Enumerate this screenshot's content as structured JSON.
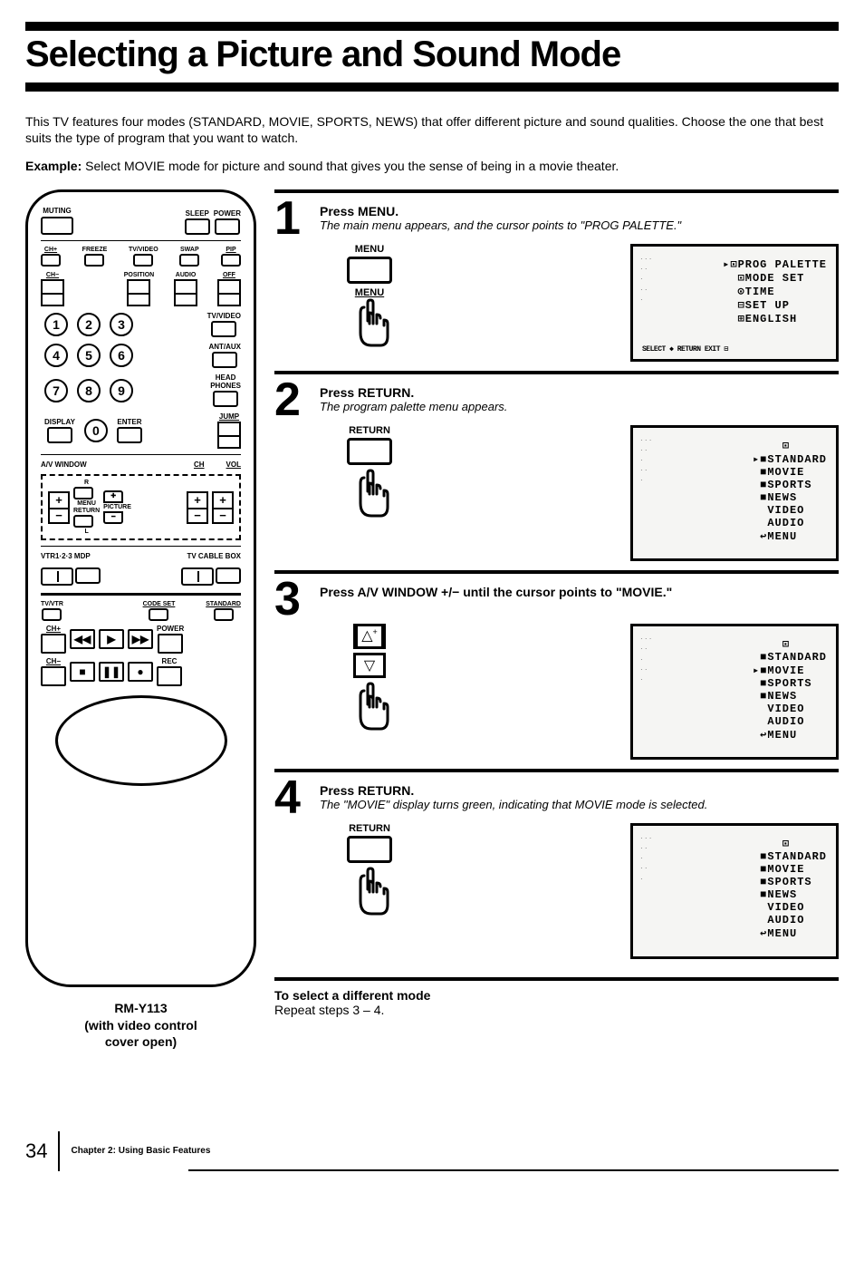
{
  "title": "Selecting a Picture and Sound Mode",
  "intro": "This TV features four modes (STANDARD, MOVIE, SPORTS, NEWS) that offer different picture and sound qualities.  Choose the one that best suits the type of program that you want to watch.",
  "example_label": "Example:",
  "example_text": " Select MOVIE mode for picture and sound that gives you the sense of being in a movie theater.",
  "remote": {
    "row1": {
      "muting": "MUTING",
      "sleep": "SLEEP",
      "power": "POWER"
    },
    "row2": {
      "ch_plus": "CH+",
      "freeze": "FREEZE",
      "tvideo": "TV/VIDEO",
      "swap": "SWAP",
      "pip": "PIP"
    },
    "row3": {
      "ch_minus": "CH−",
      "position": "POSITION",
      "audio": "AUDIO",
      "off": "OFF"
    },
    "tvideo2": "TV/VIDEO",
    "antaux": "ANT/AUX",
    "headphones": "HEAD\nPHONES",
    "display": "DISPLAY",
    "enter": "ENTER",
    "jump": "JUMP",
    "av_window": "A/V WINDOW",
    "ch": "CH",
    "vol": "VOL",
    "menu": "MENU",
    "picture": "PICTURE",
    "return": "RETURN",
    "vtr": "VTR1·2·3  MDP",
    "cable": "TV  CABLE BOX",
    "tvvtr": "TV/VTR",
    "codeset": "CODE SET",
    "standard": "STANDARD",
    "power2": "POWER",
    "rec": "REC",
    "caption": "RM-Y113\n(with video control\ncover open)"
  },
  "steps": [
    {
      "num": "1",
      "main": "Press MENU.",
      "sub": "The main menu appears, and the cursor points to \"PROG PALETTE.\"",
      "action_label": "MENU",
      "screen": [
        "▸⊡PROG PALETTE",
        "  ⊡MODE SET",
        "  ⊙TIME",
        "  ⊟SET UP",
        "  ⊞ENGLISH"
      ],
      "footer": "SELECT ◆   RETURN    EXIT ⊟"
    },
    {
      "num": "2",
      "main": "Press RETURN.",
      "sub": "The program palette menu appears.",
      "action_label": "RETURN",
      "screen": [
        "    ⊡",
        "▸■STANDARD",
        " ■MOVIE",
        " ■SPORTS",
        " ■NEWS",
        "  VIDEO",
        "  AUDIO",
        " ↩MENU"
      ]
    },
    {
      "num": "3",
      "main": "Press A/V WINDOW +/− until the cursor points to \"MOVIE.\"",
      "sub": "",
      "action_label": "",
      "screen": [
        "    ⊡",
        " ■STANDARD",
        "▸■MOVIE",
        " ■SPORTS",
        " ■NEWS",
        "  VIDEO",
        "  AUDIO",
        " ↩MENU"
      ]
    },
    {
      "num": "4",
      "main": "Press RETURN.",
      "sub": "The \"MOVIE\" display turns green, indicating that MOVIE mode is selected.",
      "action_label": "RETURN",
      "screen": [
        "    ⊡",
        " ■STANDARD",
        " ■MOVIE",
        " ■SPORTS",
        " ■NEWS",
        "  VIDEO",
        "  AUDIO",
        " ↩MENU"
      ]
    }
  ],
  "to_select": {
    "title": "To select a different mode",
    "body": "Repeat steps 3 – 4."
  },
  "footer": {
    "page": "34",
    "chapter": "Chapter 2: Using Basic Features"
  }
}
